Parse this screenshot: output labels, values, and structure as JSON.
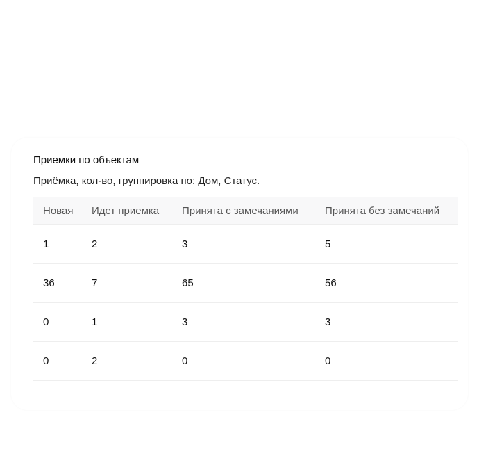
{
  "widget": {
    "title": "Приемки по объектам",
    "subtitle": "Приёмка, кол-во, группировка по: Дом, Статус."
  },
  "table": {
    "columns": [
      "Новая",
      "Идет приемка",
      "Принята с замечаниями",
      "Принята без замечаний"
    ],
    "rows": [
      [
        "1",
        "2",
        "3",
        "5"
      ],
      [
        "36",
        "7",
        "65",
        "56"
      ],
      [
        "0",
        "1",
        "3",
        "3"
      ],
      [
        "0",
        "2",
        "0",
        "0"
      ]
    ]
  }
}
